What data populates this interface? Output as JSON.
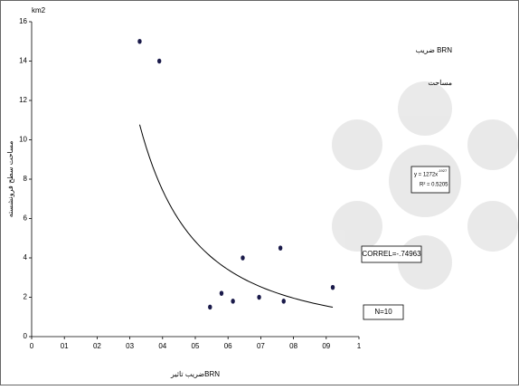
{
  "chart_data": {
    "type": "scatter",
    "y_unit": "km2",
    "x_label": "ضریب تاثیرBRN",
    "y_label": "مساحت سطح فرونشسته",
    "side_title": "ضریب BRN",
    "side_subtitle": "مساحت",
    "x": [
      0.33,
      0.39,
      0.545,
      0.58,
      0.615,
      0.645,
      0.695,
      0.76,
      0.77,
      0.92
    ],
    "values": [
      15,
      14,
      1.5,
      2.2,
      1.8,
      4.0,
      2.0,
      4.5,
      1.8,
      2.5
    ],
    "color": "#1a1a4a",
    "xlim": [
      0,
      1
    ],
    "xticks": [
      0,
      {
        "value": 0.1,
        "label": "01"
      },
      {
        "value": 0.2,
        "label": "02"
      },
      {
        "value": 0.3,
        "label": "03"
      },
      {
        "value": 0.4,
        "label": "04"
      },
      {
        "value": 0.5,
        "label": "05"
      },
      {
        "value": 0.6,
        "label": "06"
      },
      {
        "value": 0.7,
        "label": "07"
      },
      {
        "value": 0.8,
        "label": "08"
      },
      {
        "value": 0.9,
        "label": "09"
      },
      1
    ],
    "ylim": [
      0,
      16
    ],
    "yticks": [
      0,
      2,
      4,
      6,
      8,
      10,
      12,
      14,
      16
    ],
    "trendline": {
      "a": 1.272,
      "b": -1.927,
      "equation": "y = 1272x",
      "exponent": "-1927",
      "r2": "R² = 0.5205"
    },
    "correl": "CORREL=-.74963",
    "n": "N=10"
  }
}
